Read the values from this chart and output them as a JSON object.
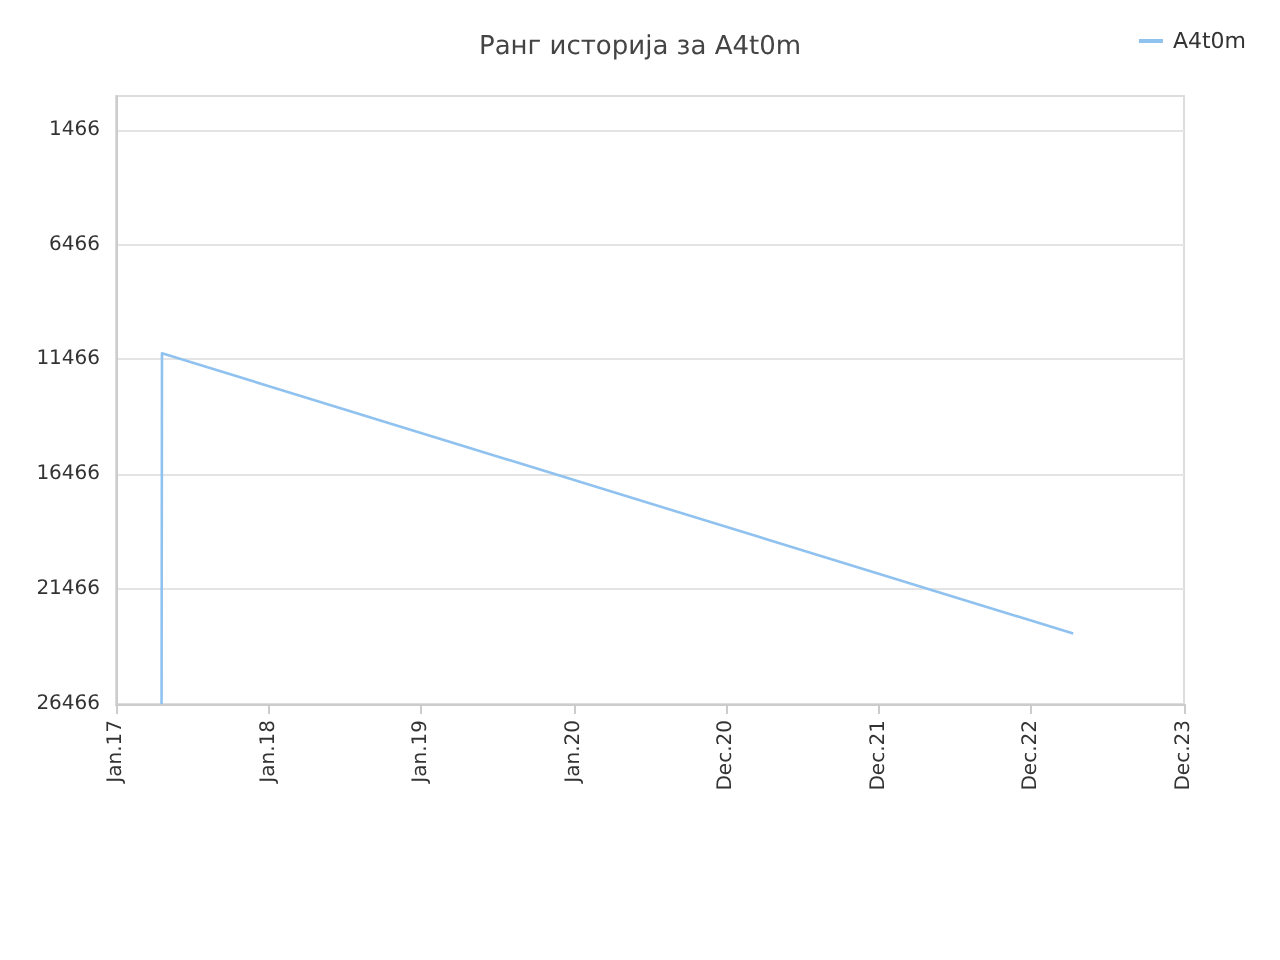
{
  "chart_data": {
    "type": "line",
    "title": "Ранг историја за A4t0m",
    "series": [
      {
        "name": "A4t0m",
        "color": "#90c2f0",
        "x": [
          "2017-04-20",
          "2017-04-21",
          "2023-04-10"
        ],
        "values": [
          26466,
          11200,
          23400
        ]
      }
    ],
    "xlim": [
      "2017-01-01",
      "2023-12-31"
    ],
    "xticks": [
      {
        "value": "2017-01-01",
        "label": "Jan.17"
      },
      {
        "value": "2018-01-01",
        "label": "Jan.18"
      },
      {
        "value": "2019-01-01",
        "label": "Jan.19"
      },
      {
        "value": "2020-01-01",
        "label": "Jan.20"
      },
      {
        "value": "2020-12-31",
        "label": "Dec.20"
      },
      {
        "value": "2021-12-31",
        "label": "Dec.21"
      },
      {
        "value": "2022-12-31",
        "label": "Dec.22"
      },
      {
        "value": "2023-12-31",
        "label": "Dec.23"
      }
    ],
    "ylim": [
      26466,
      0
    ],
    "yticks": [
      1466,
      6466,
      11466,
      16466,
      21466,
      26466
    ],
    "grid": "y",
    "legend": "top right",
    "marker": "none",
    "line_style": "solid"
  }
}
